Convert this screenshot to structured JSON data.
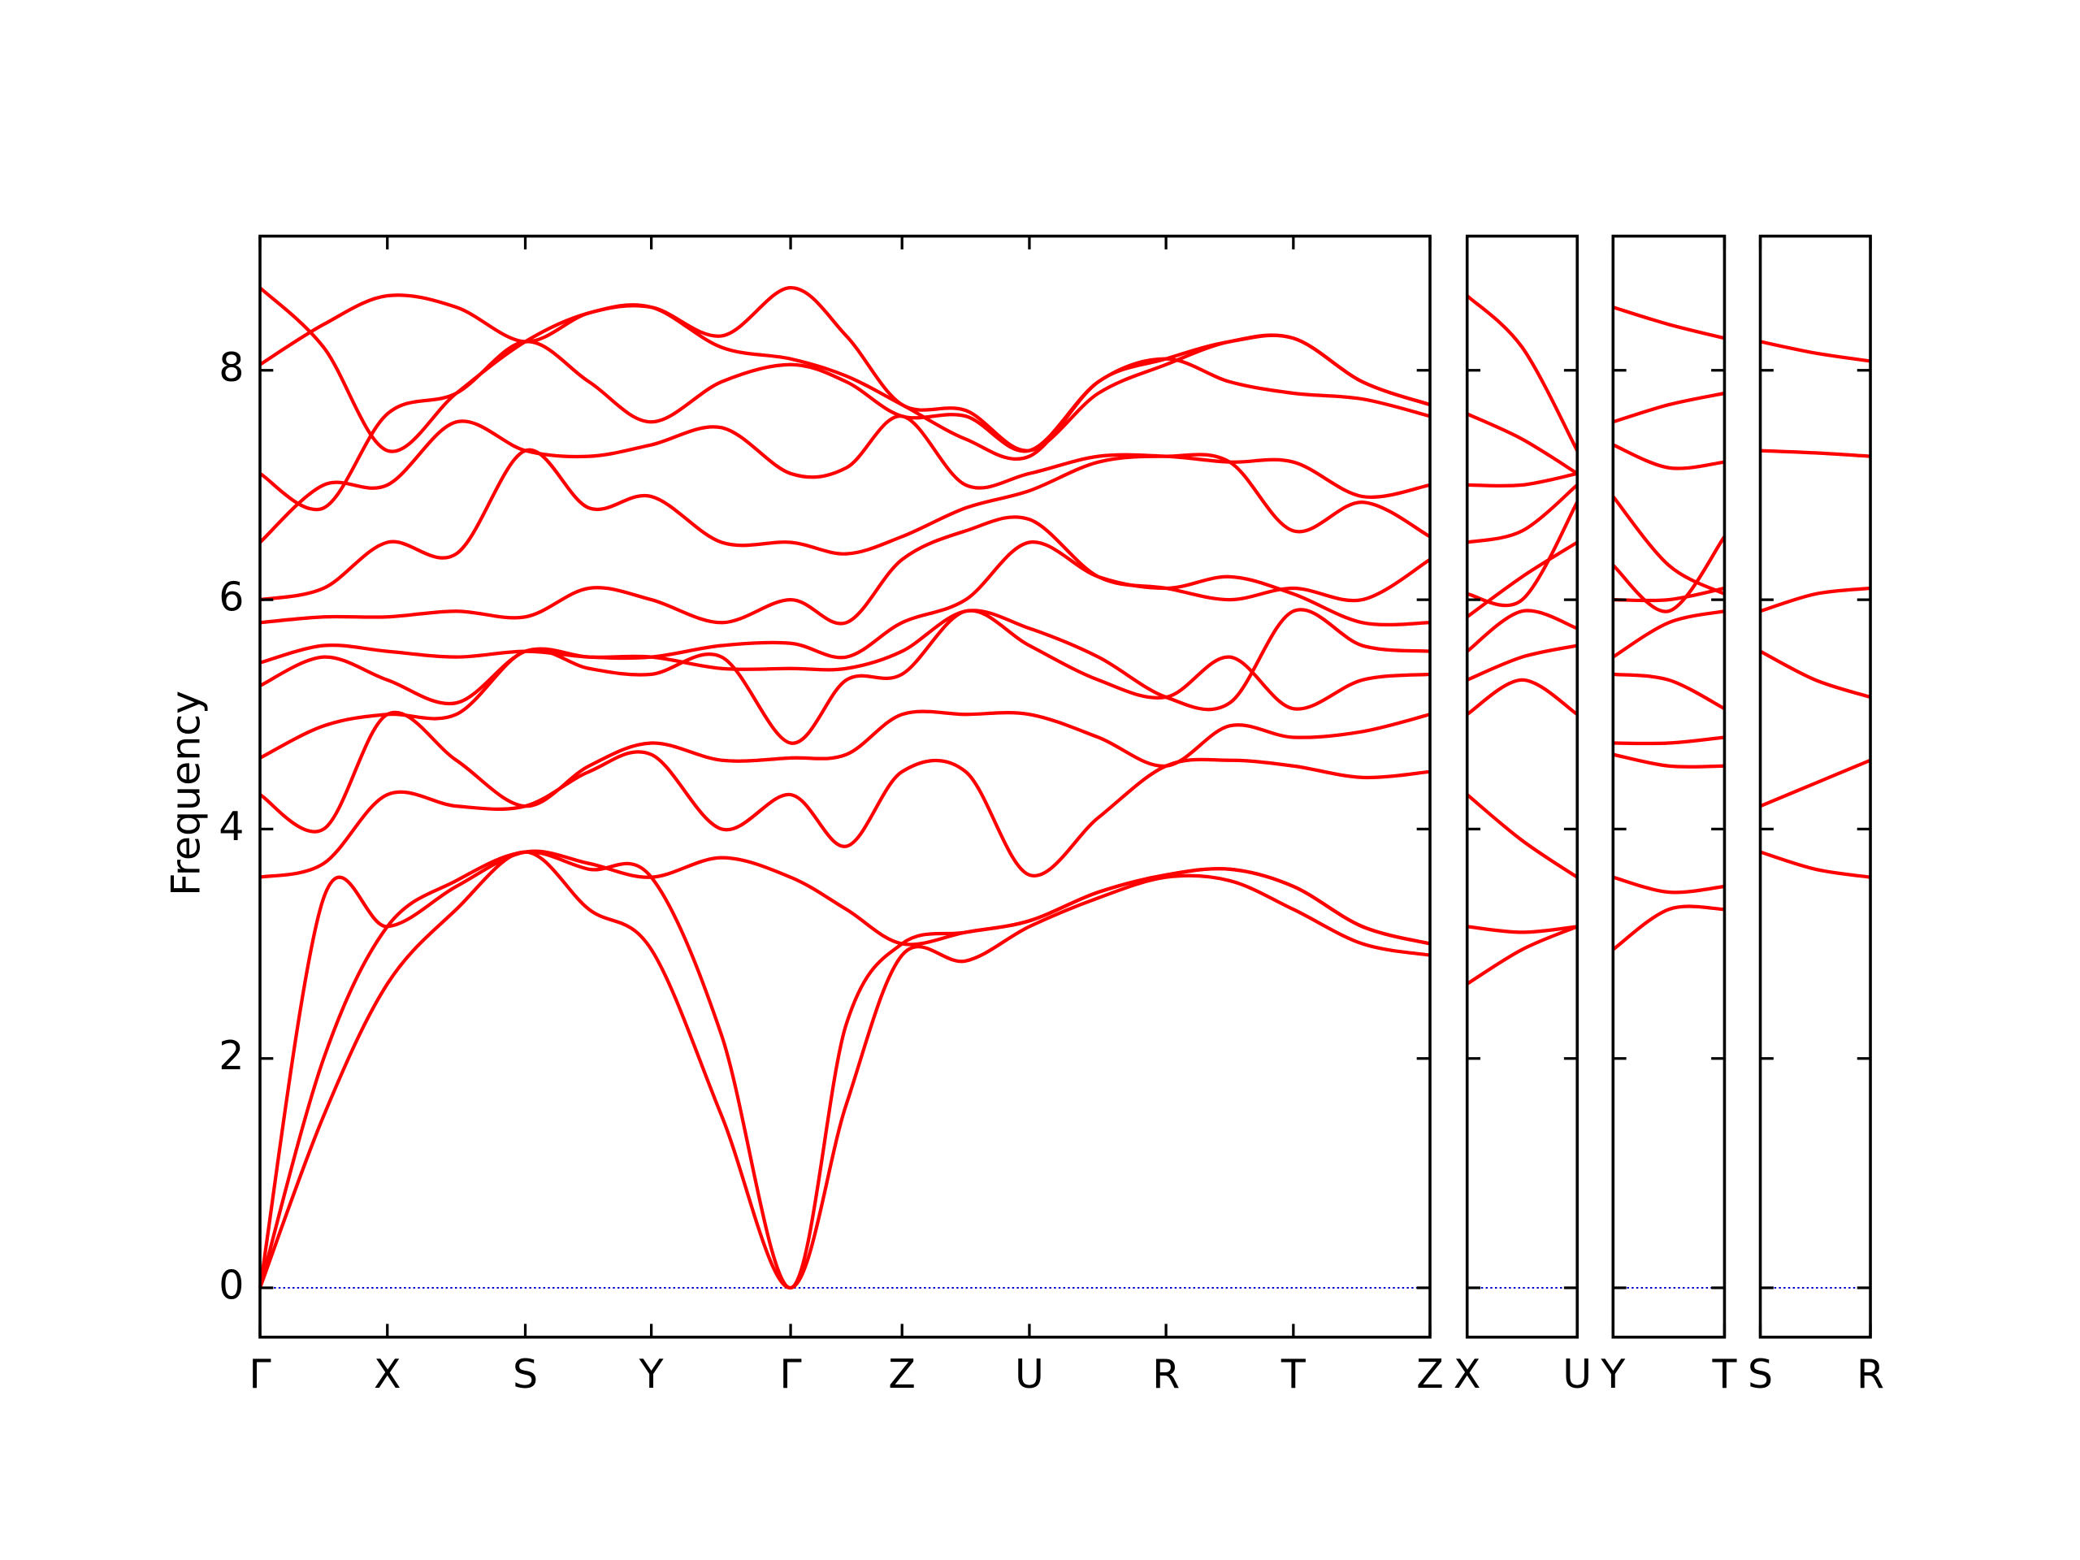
{
  "chart_data": [
    {
      "type": "line",
      "color": "#ff0000",
      "y_label": "Frequency",
      "x": [
        0,
        0.48,
        0.96,
        1.48,
        2.0,
        2.48,
        2.95,
        3.48,
        4.0,
        4.42,
        4.84,
        5.32,
        5.8,
        6.32,
        6.83,
        7.31,
        7.79,
        8.31,
        8.82
      ],
      "xlim": [
        0,
        8.82
      ],
      "xticks": [
        {
          "value": 0,
          "label": "Γ"
        },
        {
          "value": 0.96,
          "label": "X"
        },
        {
          "value": 2.0,
          "label": "S"
        },
        {
          "value": 2.95,
          "label": "Y"
        },
        {
          "value": 4.0,
          "label": "Γ"
        },
        {
          "value": 4.84,
          "label": "Z"
        },
        {
          "value": 5.8,
          "label": "U"
        },
        {
          "value": 6.83,
          "label": "R"
        },
        {
          "value": 7.79,
          "label": "T"
        },
        {
          "value": 8.82,
          "label": "Z"
        }
      ],
      "ylim": [
        -0.43,
        9.17
      ],
      "yticks": [
        0,
        2,
        4,
        6,
        8
      ],
      "series": [
        {
          "values": [
            0,
            1.5,
            2.65,
            3.3,
            3.8,
            3.3,
            2.95,
            1.5,
            0,
            1.6,
            2.9,
            2.85,
            3.15,
            3.4,
            3.58,
            3.55,
            3.3,
            3.0,
            2.9
          ]
        },
        {
          "values": [
            0,
            2.0,
            3.15,
            3.55,
            3.8,
            3.65,
            3.58,
            2.2,
            0,
            2.3,
            3.0,
            3.1,
            3.2,
            3.45,
            3.6,
            3.65,
            3.5,
            3.15,
            3.0
          ]
        },
        {
          "values": [
            0,
            3.4,
            3.15,
            3.5,
            3.8,
            3.7,
            3.58,
            3.75,
            3.58,
            3.3,
            3.0,
            3.1,
            3.2,
            3.45,
            3.6,
            3.65,
            3.5,
            3.15,
            3.0
          ]
        },
        {
          "values": [
            3.58,
            3.7,
            4.3,
            4.2,
            4.2,
            4.5,
            4.65,
            4.0,
            4.3,
            3.85,
            4.5,
            4.5,
            3.6,
            4.1,
            4.55,
            4.6,
            4.55,
            4.45,
            4.5
          ]
        },
        {
          "values": [
            4.3,
            4.0,
            5.0,
            4.6,
            4.2,
            4.55,
            4.75,
            4.6,
            4.62,
            4.65,
            5.0,
            5.0,
            5.0,
            4.8,
            4.55,
            4.9,
            4.8,
            4.85,
            5.0
          ]
        },
        {
          "values": [
            4.62,
            4.9,
            5.0,
            5.0,
            5.55,
            5.4,
            5.35,
            5.5,
            4.75,
            5.3,
            5.35,
            5.9,
            5.6,
            5.3,
            5.15,
            5.5,
            5.05,
            5.3,
            5.35
          ]
        },
        {
          "values": [
            5.25,
            5.5,
            5.3,
            5.1,
            5.55,
            5.5,
            5.5,
            5.4,
            5.4,
            5.4,
            5.55,
            5.9,
            5.75,
            5.5,
            5.15,
            5.1,
            5.9,
            5.6,
            5.55
          ]
        },
        {
          "values": [
            5.45,
            5.6,
            5.55,
            5.5,
            5.55,
            5.5,
            5.5,
            5.6,
            5.62,
            5.5,
            5.8,
            6.0,
            6.5,
            6.2,
            6.1,
            6.2,
            6.05,
            5.8,
            5.8
          ]
        },
        {
          "values": [
            5.8,
            5.85,
            5.85,
            5.9,
            5.85,
            6.1,
            6.0,
            5.8,
            6.0,
            5.8,
            6.35,
            6.6,
            6.7,
            6.2,
            6.1,
            6.0,
            6.1,
            6.0,
            6.35
          ]
        },
        {
          "values": [
            6.0,
            6.1,
            6.5,
            6.4,
            7.3,
            6.8,
            6.9,
            6.5,
            6.5,
            6.4,
            6.55,
            6.8,
            6.95,
            7.2,
            7.25,
            7.2,
            6.6,
            6.85,
            6.55
          ]
        },
        {
          "values": [
            6.5,
            7.0,
            7.0,
            7.55,
            7.3,
            7.25,
            7.35,
            7.5,
            7.1,
            7.15,
            7.6,
            7.0,
            7.1,
            7.25,
            7.25,
            7.2,
            7.2,
            6.9,
            7.0
          ]
        },
        {
          "values": [
            7.1,
            6.8,
            7.62,
            7.8,
            8.25,
            7.9,
            7.55,
            7.9,
            8.05,
            7.9,
            7.6,
            7.6,
            7.3,
            7.9,
            8.1,
            7.9,
            7.8,
            7.75,
            7.6
          ]
        },
        {
          "values": [
            8.05,
            8.4,
            8.65,
            8.55,
            8.25,
            8.5,
            8.55,
            8.2,
            8.1,
            7.95,
            7.7,
            7.4,
            7.25,
            7.9,
            8.1,
            8.25,
            8.28,
            7.9,
            7.7
          ]
        },
        {
          "values": [
            8.72,
            8.2,
            7.3,
            7.8,
            8.25,
            8.5,
            8.55,
            8.3,
            8.72,
            8.3,
            7.7,
            7.65,
            7.3,
            7.8,
            8.05,
            8.25,
            8.28,
            7.9,
            7.7
          ]
        }
      ]
    },
    {
      "type": "line",
      "color": "#ff0000",
      "x": [
        0,
        0.415,
        0.83
      ],
      "xlim": [
        0,
        0.83
      ],
      "xticks": [
        {
          "value": 0,
          "label": "X"
        },
        {
          "value": 0.83,
          "label": "U"
        }
      ],
      "ylim": [
        -0.43,
        9.17
      ],
      "series": [
        {
          "values": [
            2.65,
            2.95,
            3.15
          ]
        },
        {
          "values": [
            3.15,
            3.1,
            3.15
          ]
        },
        {
          "values": [
            4.3,
            3.9,
            3.58
          ]
        },
        {
          "values": [
            5.0,
            5.3,
            5.0
          ]
        },
        {
          "values": [
            5.3,
            5.5,
            5.6
          ]
        },
        {
          "values": [
            5.55,
            5.9,
            5.75
          ]
        },
        {
          "values": [
            5.85,
            6.2,
            6.5
          ]
        },
        {
          "values": [
            6.05,
            6.0,
            6.85
          ]
        },
        {
          "values": [
            6.5,
            6.6,
            7.0
          ]
        },
        {
          "values": [
            7.0,
            7.0,
            7.1
          ]
        },
        {
          "values": [
            7.62,
            7.4,
            7.1
          ]
        },
        {
          "values": [
            8.65,
            8.2,
            7.3
          ]
        }
      ]
    },
    {
      "type": "line",
      "color": "#ff0000",
      "x": [
        0,
        0.42,
        0.84
      ],
      "xlim": [
        0,
        0.84
      ],
      "xticks": [
        {
          "value": 0,
          "label": "Y"
        },
        {
          "value": 0.84,
          "label": "T"
        }
      ],
      "ylim": [
        -0.43,
        9.17
      ],
      "series": [
        {
          "values": [
            2.95,
            3.3,
            3.3
          ]
        },
        {
          "values": [
            3.58,
            3.45,
            3.5
          ]
        },
        {
          "values": [
            4.65,
            4.55,
            4.55
          ]
        },
        {
          "values": [
            4.75,
            4.75,
            4.8
          ]
        },
        {
          "values": [
            5.35,
            5.3,
            5.05
          ]
        },
        {
          "values": [
            5.5,
            5.8,
            5.9
          ]
        },
        {
          "values": [
            6.0,
            6.0,
            6.1
          ]
        },
        {
          "values": [
            6.3,
            5.9,
            6.55
          ]
        },
        {
          "values": [
            6.9,
            6.3,
            6.05
          ]
        },
        {
          "values": [
            7.35,
            7.15,
            7.2
          ]
        },
        {
          "values": [
            7.55,
            7.7,
            7.8
          ]
        },
        {
          "values": [
            8.55,
            8.4,
            8.28
          ]
        }
      ]
    },
    {
      "type": "line",
      "color": "#ff0000",
      "x": [
        0,
        0.415,
        0.83
      ],
      "xlim": [
        0,
        0.83
      ],
      "xticks": [
        {
          "value": 0,
          "label": "S"
        },
        {
          "value": 0.83,
          "label": "R"
        }
      ],
      "ylim": [
        -0.43,
        9.17
      ],
      "series": [
        {
          "values": [
            3.8,
            3.65,
            3.58
          ]
        },
        {
          "values": [
            4.2,
            4.4,
            4.6
          ]
        },
        {
          "values": [
            5.55,
            5.3,
            5.15
          ]
        },
        {
          "values": [
            5.9,
            6.05,
            6.1
          ]
        },
        {
          "values": [
            7.3,
            7.28,
            7.25
          ]
        },
        {
          "values": [
            8.25,
            8.15,
            8.08
          ]
        }
      ]
    }
  ]
}
